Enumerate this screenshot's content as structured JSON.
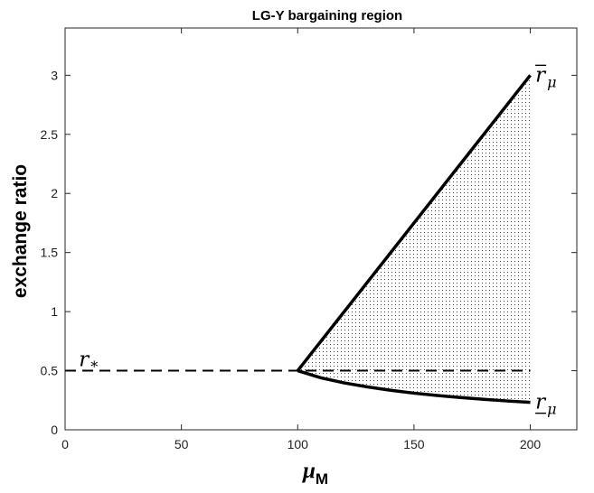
{
  "chart_data": {
    "type": "line",
    "title": "LG-Y bargaining region",
    "xlabel": {
      "symbol": "μ",
      "subscript": "M"
    },
    "ylabel": "exchange ratio",
    "xlim": [
      0,
      220
    ],
    "ylim": [
      0,
      3.4
    ],
    "xticks": [
      0,
      50,
      100,
      150,
      200
    ],
    "yticks": [
      0,
      0.5,
      1,
      1.5,
      2,
      2.5,
      3
    ],
    "xtick_labels": [
      "0",
      "50",
      "100",
      "150",
      "200"
    ],
    "ytick_labels": [
      "0",
      "0.5",
      "1",
      "1.5",
      "2",
      "2.5",
      "3"
    ],
    "grid": false,
    "series": [
      {
        "name": "upper",
        "style": "solid",
        "color": "#000000",
        "x": [
          100,
          200
        ],
        "y": [
          0.5,
          3.0
        ]
      },
      {
        "name": "lower",
        "style": "solid",
        "color": "#000000",
        "x": [
          100,
          110,
          120,
          130,
          140,
          150,
          160,
          170,
          180,
          190,
          200
        ],
        "y": [
          0.5,
          0.44,
          0.397,
          0.363,
          0.334,
          0.31,
          0.29,
          0.273,
          0.258,
          0.244,
          0.232
        ]
      },
      {
        "name": "r_star",
        "style": "dashed",
        "color": "#000000",
        "x": [
          0,
          200
        ],
        "y": [
          0.5,
          0.5
        ]
      }
    ],
    "shaded_region": {
      "pattern": "dots",
      "x_from": 100,
      "x_to": 200,
      "between": [
        "upper",
        "lower"
      ]
    },
    "annotations": [
      {
        "id": "r_star",
        "base": "r",
        "sub": "*",
        "accent": "none",
        "x": 4,
        "y": 0.5
      },
      {
        "id": "r_upper",
        "base": "r",
        "sub": "μ",
        "accent": "overline",
        "x": 201,
        "y": 3.0
      },
      {
        "id": "r_lower",
        "base": "r",
        "sub": "μ",
        "accent": "underline",
        "x": 201,
        "y": 0.232
      }
    ]
  }
}
